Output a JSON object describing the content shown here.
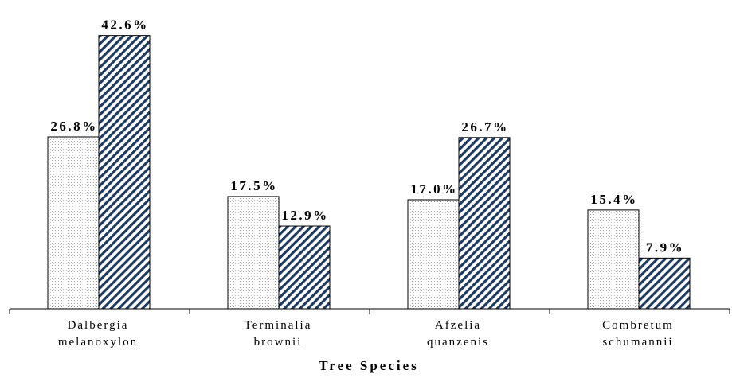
{
  "chart_data": {
    "type": "bar",
    "title": "",
    "xlabel": "Tree Species",
    "ylabel": "",
    "ylim": [
      0,
      45
    ],
    "grid": false,
    "legend": "none",
    "categories": [
      [
        "Dalbergia",
        "melanoxylon"
      ],
      [
        "Terminalia",
        "brownii"
      ],
      [
        "Afzelia",
        "quanzenis"
      ],
      [
        "Combretum",
        "schumannii"
      ]
    ],
    "series": [
      {
        "values": [
          26.8,
          17.5,
          17.0,
          15.4
        ],
        "labels": [
          "26.8%",
          "17.5%",
          "17.0%",
          "15.4%"
        ],
        "pattern": "dotted",
        "fill": "#ffffff",
        "pattern_color": "#9a9a9a"
      },
      {
        "values": [
          42.6,
          12.9,
          26.7,
          7.9
        ],
        "labels": [
          "42.6%",
          "12.9%",
          "26.7%",
          "7.9%"
        ],
        "pattern": "diagonal-hatch",
        "fill": "#ffffff",
        "pattern_color": "#1f3a5f"
      }
    ]
  }
}
